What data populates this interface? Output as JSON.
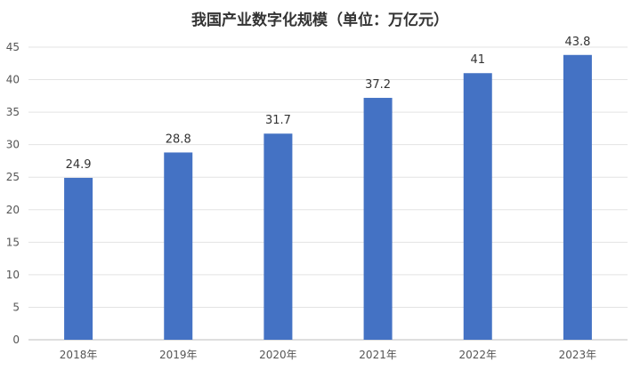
{
  "chart_data": {
    "type": "bar",
    "title": "我国产业数字化规模（单位：万亿元）",
    "categories": [
      "2018年",
      "2019年",
      "2020年",
      "2021年",
      "2022年",
      "2023年"
    ],
    "values": [
      24.9,
      28.8,
      31.7,
      37.2,
      41,
      43.8
    ],
    "data_labels": [
      "24.9",
      "28.8",
      "31.7",
      "37.2",
      "41",
      "43.8"
    ],
    "xlabel": "",
    "ylabel": "",
    "ylim": [
      0,
      45
    ],
    "yticks": [
      0,
      5,
      10,
      15,
      20,
      25,
      30,
      35,
      40,
      45
    ],
    "grid": true,
    "legend": "none",
    "bar_color": "#4472C4"
  }
}
